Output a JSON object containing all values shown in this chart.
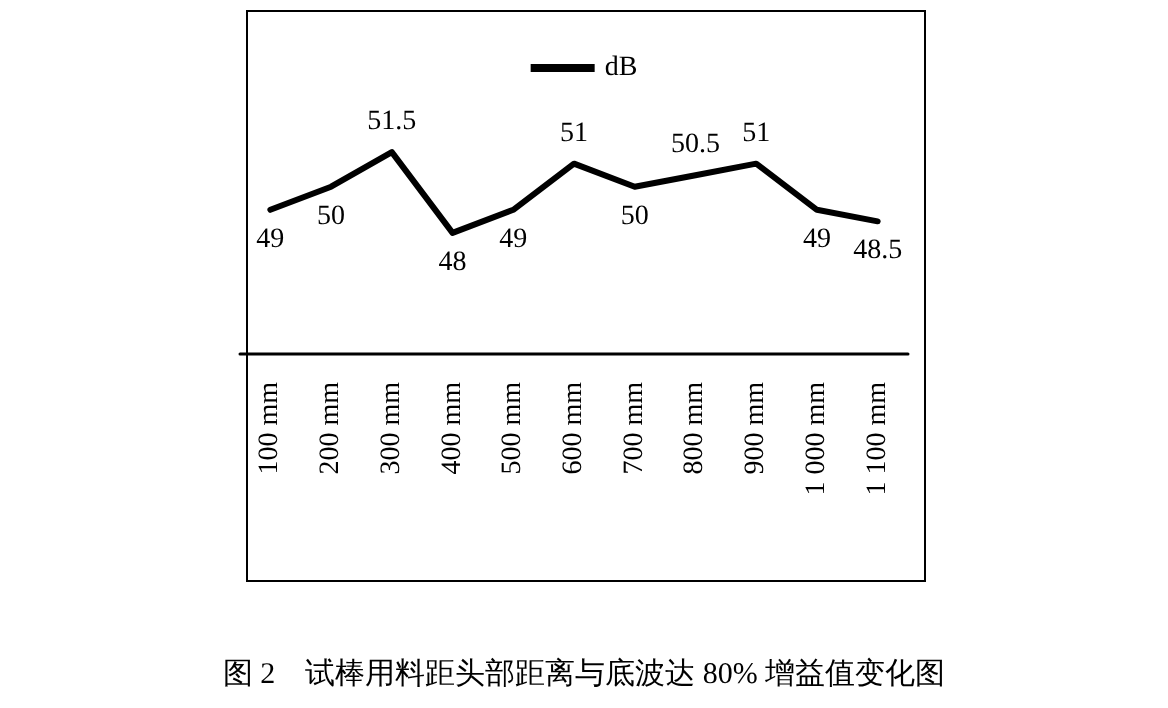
{
  "chart_data": {
    "type": "line",
    "title": "图 2　试棒用料距头部距离与底波达 80% 增益值变化图",
    "categories": [
      "100 mm",
      "200 mm",
      "300 mm",
      "400 mm",
      "500 mm",
      "600 mm",
      "700 mm",
      "800 mm",
      "900 mm",
      "1 000 mm",
      "1 100 mm"
    ],
    "series": [
      {
        "name": "dB",
        "color": "#000000",
        "values": [
          49,
          50,
          51.5,
          48,
          49,
          51,
          50,
          50.5,
          51,
          49,
          48.5
        ]
      }
    ],
    "data_labels": true,
    "legend": "top",
    "grid": false,
    "marker": "none",
    "line_style": "solid"
  }
}
